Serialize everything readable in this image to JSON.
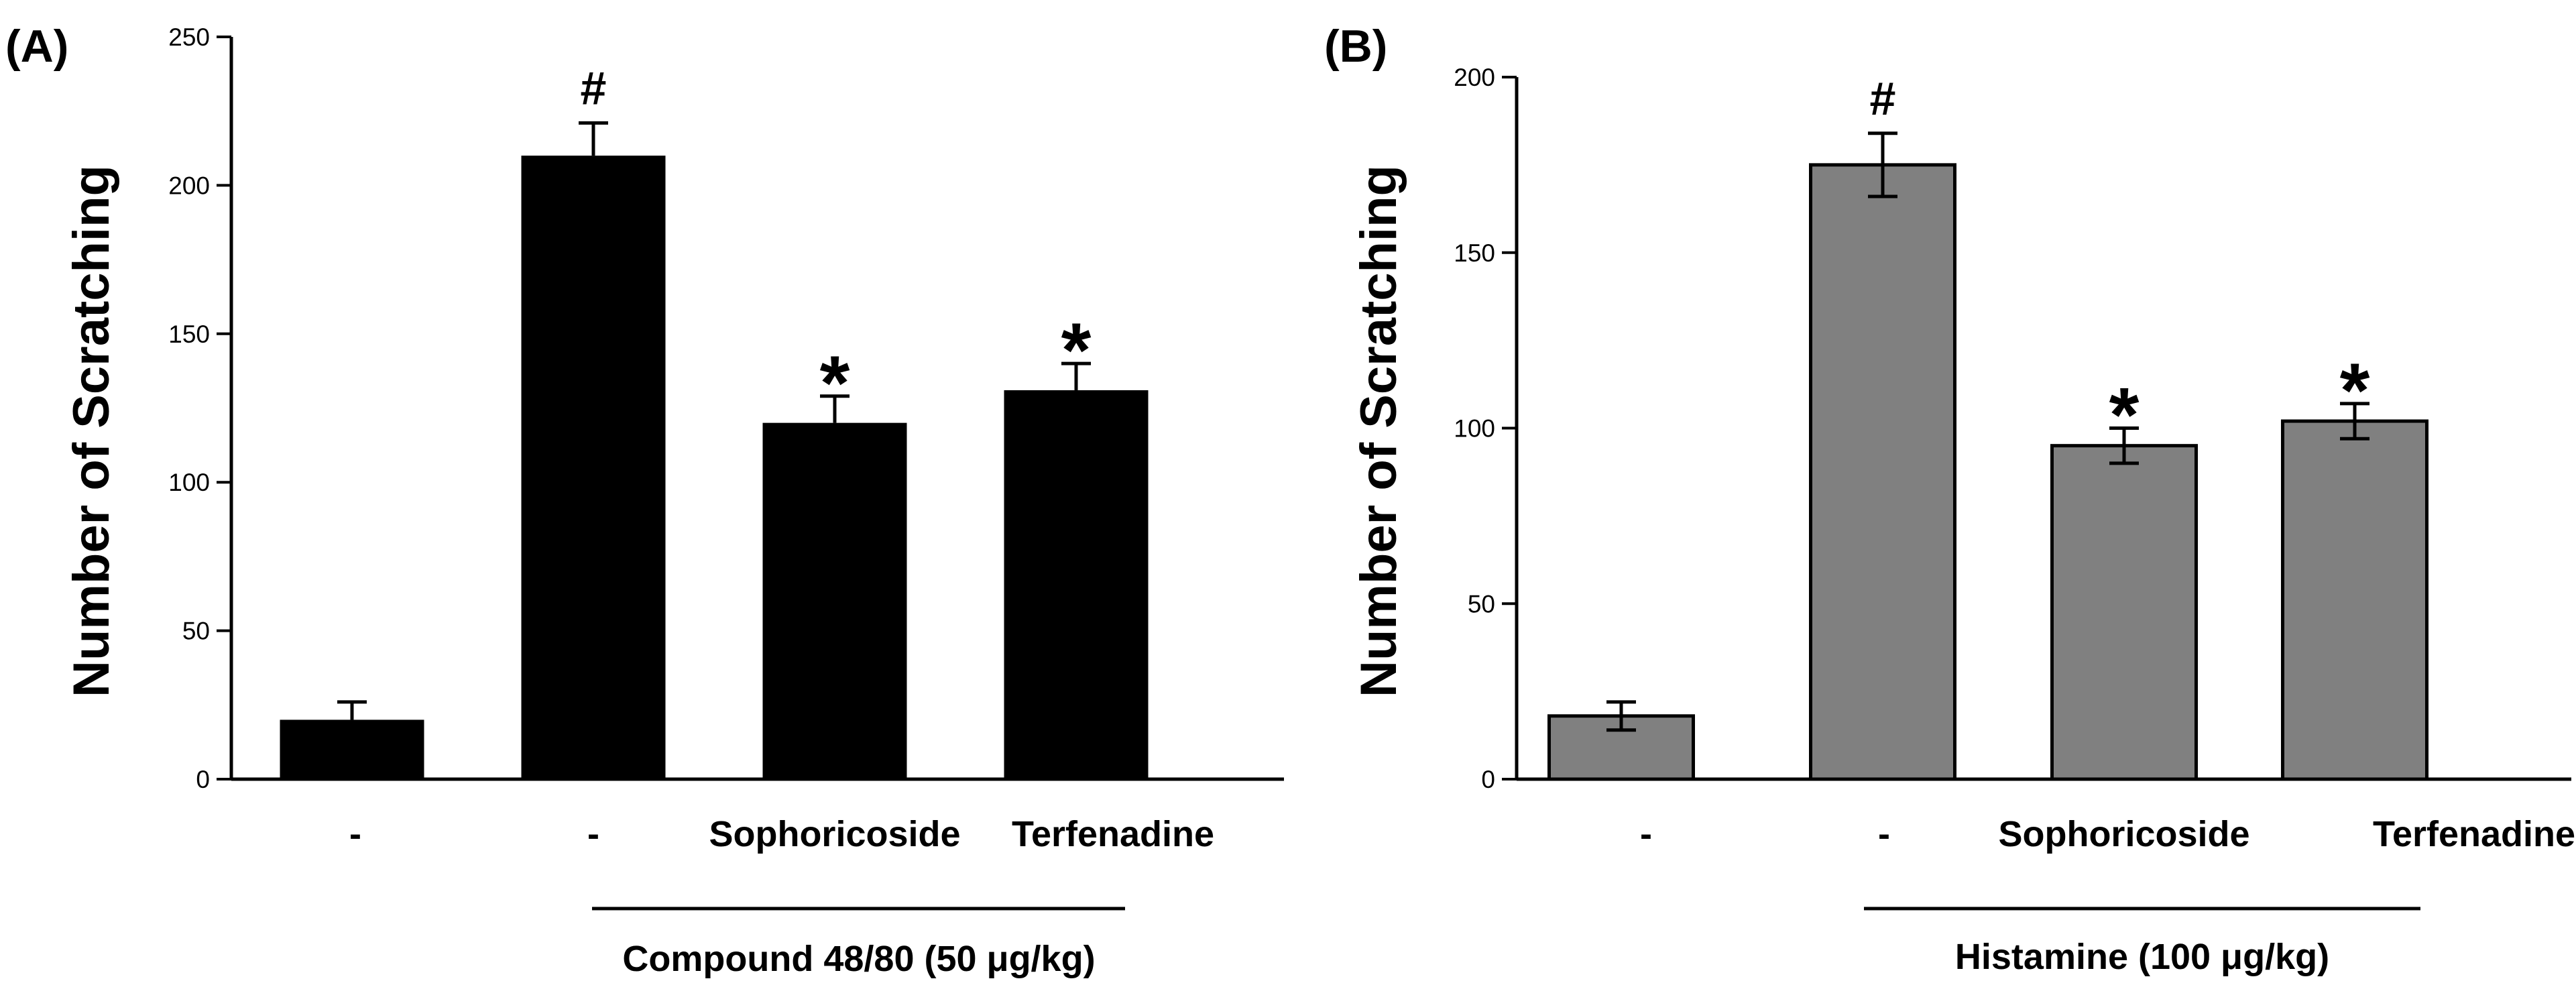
{
  "chart_data": [
    {
      "type": "bar",
      "panel_label": "(A)",
      "title": "",
      "categories": [
        "-",
        "-",
        "Sophoricoside",
        "Terfenadine"
      ],
      "values": [
        20,
        210,
        120,
        131
      ],
      "errors": [
        6,
        11,
        9,
        9
      ],
      "annotations": [
        "",
        "#",
        "*",
        "*"
      ],
      "xlabel": "",
      "ylabel": "Number of Scratching",
      "ylim": [
        0,
        250
      ],
      "yticks": [
        0,
        50,
        100,
        150,
        200,
        250
      ],
      "group_label": "Compound 48/80  (50 μg/kg)",
      "bar_color": "#000000",
      "grid": false
    },
    {
      "type": "bar",
      "panel_label": "(B)",
      "title": "",
      "categories": [
        "-",
        "-",
        "Sophoricoside",
        "Terfenadine"
      ],
      "values": [
        18,
        175,
        95,
        102
      ],
      "errors": [
        4,
        9,
        5,
        5
      ],
      "annotations": [
        "",
        "#",
        "*",
        "*"
      ],
      "xlabel": "",
      "ylabel": "Number of Scratching",
      "ylim": [
        0,
        200
      ],
      "yticks": [
        0,
        50,
        100,
        150,
        200
      ],
      "group_label": "Histamine (100 μg/kg)",
      "bar_color": "#808080",
      "grid": false
    }
  ]
}
